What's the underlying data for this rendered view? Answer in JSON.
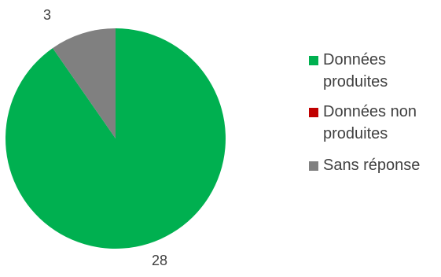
{
  "chart_data": {
    "type": "pie",
    "title": "",
    "categories": [
      "Données produites",
      "Données non produites",
      "Sans réponse"
    ],
    "values": [
      28,
      0,
      3
    ],
    "colors": [
      "#00b050",
      "#c00000",
      "#808080"
    ],
    "data_labels": [
      "28",
      "",
      "3"
    ],
    "legend_position": "right",
    "start_angle_deg": 0,
    "direction": "clockwise"
  }
}
